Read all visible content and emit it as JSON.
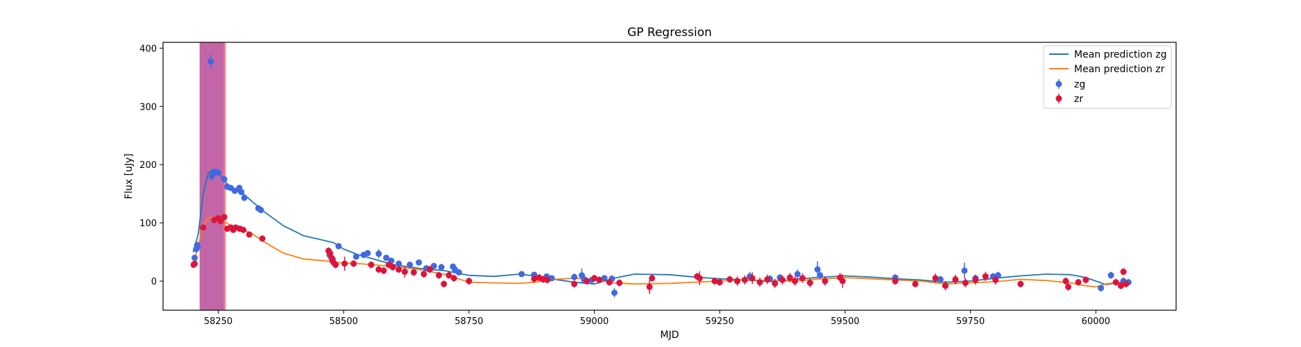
{
  "chart_data": {
    "type": "scatter",
    "title": "GP Regression",
    "xlabel": "MJD",
    "ylabel": "Flux [uJy]",
    "xlim": [
      58140,
      60160
    ],
    "ylim": [
      -50,
      410
    ],
    "xticks": [
      58250,
      58500,
      58750,
      59000,
      59250,
      59500,
      59750,
      60000
    ],
    "yticks": [
      0,
      100,
      200,
      300,
      400
    ],
    "grid": false,
    "legend_position": "top-right",
    "legend": {
      "mean_zg": "Mean prediction zg",
      "mean_zr": "Mean prediction zr",
      "zg": "zg",
      "zr": "zr"
    },
    "colors": {
      "mean_zg": "#1f77b4",
      "mean_zr": "#ff7f0e",
      "zg": "#4169e1",
      "zr": "#dc143c",
      "band_outer": "#ff7f7f",
      "band_inner": "#c266a8"
    },
    "shaded_regions": [
      {
        "x0": 58213,
        "x1": 58265,
        "color": "#ff7f7f"
      },
      {
        "x0": 58213,
        "x1": 58261,
        "color": "#c266a8"
      }
    ],
    "series": [
      {
        "name": "Mean prediction zg",
        "kind": "line",
        "x": [
          58200,
          58210,
          58220,
          58230,
          58240,
          58250,
          58260,
          58270,
          58280,
          58300,
          58320,
          58340,
          58380,
          58420,
          58460,
          58480,
          58500,
          58530,
          58560,
          58600,
          58650,
          58700,
          58750,
          58800,
          58850,
          58880,
          58920,
          58960,
          59000,
          59040,
          59080,
          59150,
          59200,
          59250,
          59300,
          59350,
          59400,
          59440,
          59500,
          59550,
          59600,
          59650,
          59700,
          59750,
          59800,
          59850,
          59900,
          59950,
          59980,
          60000,
          60020,
          60040,
          60060
        ],
        "y": [
          50,
          80,
          150,
          185,
          192,
          186,
          175,
          165,
          158,
          150,
          135,
          120,
          95,
          78,
          70,
          66,
          55,
          45,
          38,
          28,
          22,
          18,
          10,
          8,
          12,
          9,
          3,
          -2,
          -5,
          5,
          12,
          11,
          7,
          4,
          2,
          -1,
          3,
          6,
          9,
          7,
          4,
          2,
          -2,
          0,
          5,
          9,
          12,
          11,
          6,
          0,
          -6,
          -3,
          0
        ]
      },
      {
        "name": "Mean prediction zr",
        "kind": "line",
        "x": [
          58200,
          58210,
          58220,
          58230,
          58240,
          58250,
          58260,
          58270,
          58280,
          58300,
          58320,
          58340,
          58380,
          58420,
          58460,
          58480,
          58500,
          58530,
          58560,
          58600,
          58650,
          58700,
          58750,
          58800,
          58850,
          58880,
          58920,
          58960,
          59000,
          59040,
          59080,
          59150,
          59200,
          59250,
          59300,
          59350,
          59400,
          59440,
          59500,
          59550,
          59600,
          59650,
          59700,
          59750,
          59800,
          59850,
          59900,
          59950,
          59980,
          60000,
          60020,
          60040,
          60060
        ],
        "y": [
          30,
          60,
          95,
          108,
          110,
          108,
          103,
          98,
          93,
          88,
          80,
          68,
          48,
          38,
          35,
          33,
          31,
          30,
          28,
          25,
          20,
          12,
          -2,
          -3,
          -4,
          -2,
          3,
          5,
          2,
          -3,
          -5,
          -4,
          -2,
          0,
          2,
          1,
          0,
          3,
          6,
          4,
          2,
          0,
          -5,
          -3,
          -1,
          3,
          1,
          -3,
          -8,
          -10,
          -5,
          -2,
          -3
        ]
      },
      {
        "name": "zg",
        "kind": "errorbar",
        "x": [
          58203,
          58206,
          58208,
          58209,
          58235,
          58237,
          58240,
          58245,
          58250,
          58262,
          58268,
          58275,
          58283,
          58292,
          58296,
          58302,
          58330,
          58335,
          58472,
          58478,
          58490,
          58525,
          58540,
          58548,
          58570,
          58585,
          58595,
          58610,
          58632,
          58650,
          58665,
          58680,
          58695,
          58718,
          58722,
          58730,
          58855,
          58880,
          58905,
          58915,
          58960,
          58975,
          58980,
          58995,
          59020,
          59035,
          59040,
          59310,
          59350,
          59370,
          59405,
          59445,
          59450,
          59600,
          59690,
          59720,
          59738,
          59760,
          59795,
          59805,
          60010,
          60030,
          60055,
          60065
        ],
        "y": [
          40,
          55,
          62,
          58,
          377,
          180,
          185,
          188,
          186,
          175,
          162,
          160,
          155,
          160,
          153,
          143,
          125,
          122,
          45,
          38,
          60,
          42,
          45,
          48,
          47,
          40,
          35,
          30,
          28,
          32,
          22,
          26,
          24,
          25,
          20,
          15,
          12,
          11,
          8,
          5,
          7,
          10,
          3,
          2,
          5,
          4,
          -20,
          8,
          4,
          6,
          12,
          20,
          10,
          6,
          3,
          2,
          18,
          5,
          8,
          10,
          -12,
          10,
          0,
          -2
        ],
        "yerr": [
          4,
          5,
          5,
          5,
          12,
          8,
          6,
          5,
          5,
          5,
          5,
          5,
          5,
          5,
          5,
          5,
          5,
          5,
          5,
          5,
          5,
          5,
          5,
          5,
          8,
          5,
          5,
          5,
          5,
          5,
          5,
          5,
          5,
          5,
          5,
          5,
          5,
          5,
          5,
          5,
          6,
          12,
          5,
          5,
          5,
          6,
          8,
          8,
          6,
          6,
          8,
          14,
          6,
          6,
          6,
          6,
          14,
          6,
          6,
          6,
          6,
          6,
          6,
          6
        ]
      },
      {
        "name": "zr",
        "kind": "errorbar",
        "x": [
          58201,
          58203,
          58220,
          58242,
          58250,
          58255,
          58262,
          58268,
          58275,
          58280,
          58285,
          58293,
          58300,
          58312,
          58338,
          58470,
          58473,
          58476,
          58478,
          58480,
          58484,
          58502,
          58520,
          58555,
          58570,
          58580,
          58590,
          58598,
          58610,
          58622,
          58640,
          58660,
          58672,
          58690,
          58700,
          58710,
          58720,
          58750,
          58880,
          58890,
          58898,
          58906,
          58960,
          58985,
          59000,
          59010,
          59030,
          59050,
          59110,
          59115,
          59205,
          59210,
          59240,
          59250,
          59270,
          59285,
          59300,
          59315,
          59330,
          59345,
          59360,
          59375,
          59390,
          59400,
          59415,
          59430,
          59460,
          59490,
          59495,
          59600,
          59640,
          59680,
          59700,
          59720,
          59740,
          59760,
          59780,
          59800,
          59850,
          59940,
          59945,
          59965,
          59980,
          60040,
          60050,
          60055,
          60060
        ],
        "y": [
          28,
          30,
          92,
          105,
          108,
          103,
          110,
          90,
          92,
          88,
          92,
          90,
          88,
          80,
          73,
          52,
          48,
          40,
          35,
          32,
          28,
          30,
          30,
          28,
          20,
          18,
          28,
          24,
          20,
          16,
          15,
          12,
          20,
          10,
          -5,
          10,
          5,
          0,
          4,
          6,
          3,
          2,
          -5,
          0,
          5,
          2,
          -2,
          -3,
          -10,
          5,
          8,
          5,
          0,
          -2,
          3,
          0,
          2,
          5,
          -2,
          3,
          -4,
          2,
          6,
          0,
          5,
          -3,
          0,
          6,
          0,
          0,
          -5,
          5,
          -8,
          3,
          -3,
          2,
          8,
          2,
          -5,
          0,
          -10,
          -2,
          2,
          -2,
          -8,
          16,
          -5
        ],
        "yerr": [
          4,
          4,
          5,
          5,
          5,
          5,
          5,
          5,
          5,
          5,
          5,
          5,
          5,
          5,
          5,
          6,
          6,
          6,
          8,
          6,
          6,
          12,
          6,
          6,
          6,
          6,
          6,
          6,
          6,
          10,
          6,
          6,
          6,
          6,
          6,
          6,
          6,
          6,
          6,
          6,
          6,
          6,
          6,
          6,
          6,
          6,
          6,
          6,
          12,
          6,
          6,
          12,
          6,
          6,
          6,
          8,
          8,
          10,
          8,
          8,
          8,
          8,
          8,
          8,
          8,
          8,
          8,
          8,
          12,
          6,
          6,
          8,
          8,
          8,
          8,
          8,
          8,
          8,
          6,
          6,
          6,
          6,
          6,
          6,
          6,
          6,
          6
        ]
      }
    ]
  }
}
